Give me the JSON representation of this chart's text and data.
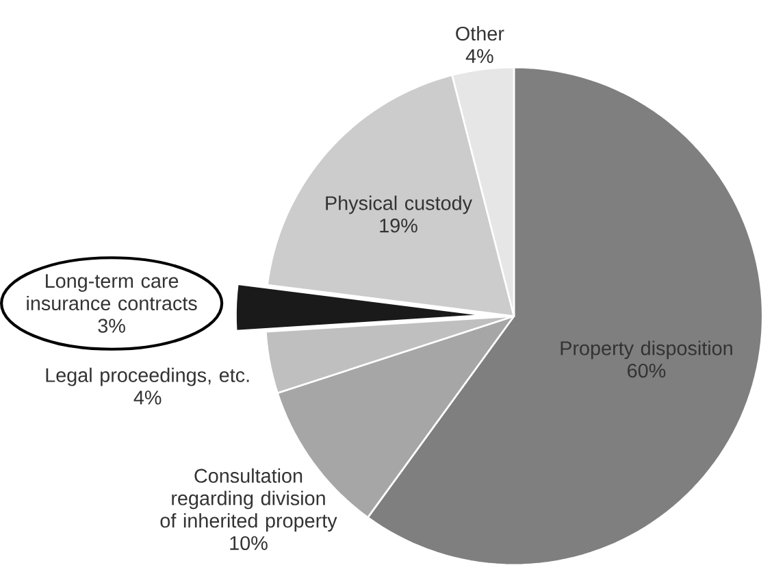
{
  "chart_data": {
    "type": "pie",
    "categories": [
      "Property disposition",
      "Consultation regarding division of inherited property",
      "Legal proceedings, etc.",
      "Long-term care insurance contracts",
      "Physical custody",
      "Other"
    ],
    "values": [
      60,
      10,
      4,
      3,
      19,
      4
    ],
    "value_labels": [
      "60%",
      "10%",
      "4%",
      "3%",
      "19%",
      "4%"
    ],
    "colors": [
      "#7f7f7f",
      "#a6a6a6",
      "#bfbfbf",
      "#1a1a1a",
      "#cccccc",
      "#e6e6e6"
    ]
  }
}
